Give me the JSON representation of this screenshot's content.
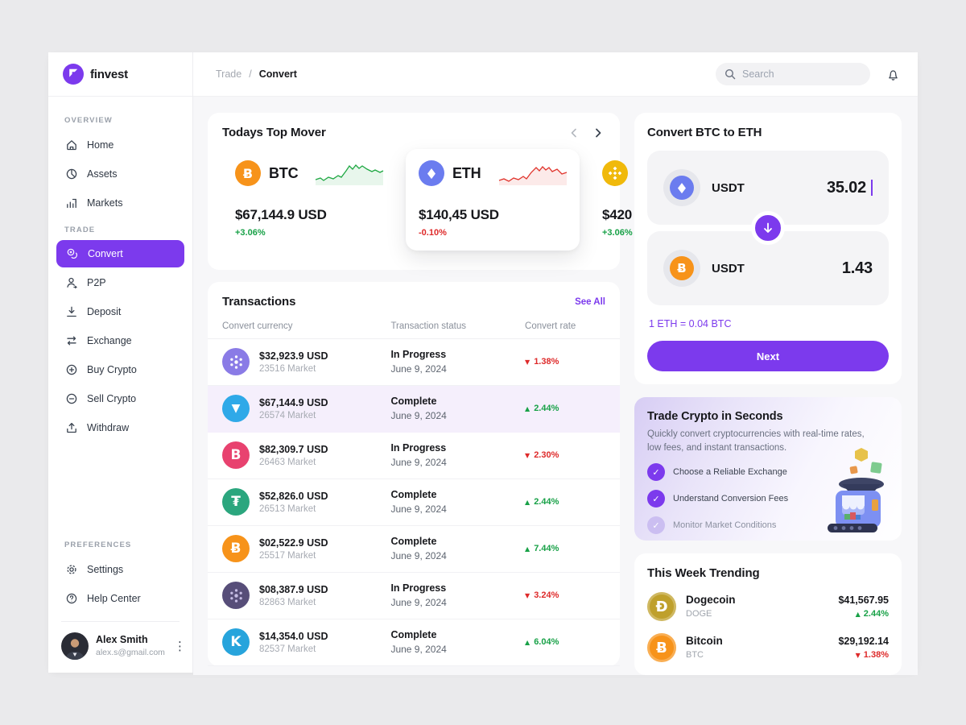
{
  "colors": {
    "accent": "#7c3aed",
    "green": "#18a147",
    "red": "#de2a2a"
  },
  "app": {
    "brand": "finvest"
  },
  "header": {
    "breadcrumb": [
      "Trade",
      "Convert"
    ],
    "search_placeholder": "Search"
  },
  "sidebar": {
    "sections": [
      {
        "label": "OVERVIEW",
        "items": [
          {
            "label": "Home",
            "icon": "home-icon"
          },
          {
            "label": "Assets",
            "icon": "assets-icon"
          },
          {
            "label": "Markets",
            "icon": "markets-icon"
          }
        ]
      },
      {
        "label": "TRADE",
        "items": [
          {
            "label": "Convert",
            "icon": "convert-icon",
            "active": true
          },
          {
            "label": "P2P",
            "icon": "p2p-icon"
          },
          {
            "label": "Deposit",
            "icon": "deposit-icon"
          },
          {
            "label": "Exchange",
            "icon": "exchange-icon"
          },
          {
            "label": "Buy Crypto",
            "icon": "buy-icon"
          },
          {
            "label": "Sell Crypto",
            "icon": "sell-icon"
          },
          {
            "label": "Withdraw",
            "icon": "withdraw-icon"
          }
        ]
      },
      {
        "label": "PREFERENCES",
        "items": [
          {
            "label": "Settings",
            "icon": "settings-icon"
          },
          {
            "label": "Help Center",
            "icon": "help-icon"
          }
        ]
      }
    ],
    "profile": {
      "name": "Alex Smith",
      "email": "alex.s@gmail.com"
    }
  },
  "top_mover": {
    "title": "Todays Top Mover",
    "cards": [
      {
        "symbol": "BTC",
        "price": "$67,144.9 USD",
        "change": "+3.06%",
        "direction": "up",
        "icon": {
          "kind": "text",
          "glyph": "Ƀ",
          "bg": "#f7931a"
        },
        "spark": "green",
        "elevated": false
      },
      {
        "symbol": "ETH",
        "price": "$140,45 USD",
        "change": "-0.10%",
        "direction": "down",
        "icon": {
          "kind": "eth",
          "bg": "#6b7cef"
        },
        "spark": "red",
        "elevated": true
      },
      {
        "symbol": "",
        "price": "$420",
        "change": "+3.06%",
        "direction": "up",
        "icon": {
          "kind": "cube",
          "bg": "#f0b90b"
        },
        "spark": "green",
        "elevated": false
      }
    ]
  },
  "transactions": {
    "title": "Transactions",
    "see_all": "See All",
    "columns": [
      "Convert currency",
      "Transaction status",
      "Convert rate"
    ],
    "rows": [
      {
        "value": "$32,923.9 USD",
        "market": "23516 Market",
        "status": "In Progress",
        "date": "June 9, 2024",
        "rate": "1.38%",
        "direction": "down",
        "icon": {
          "kind": "dots",
          "bg": "#8a7be6",
          "dot": "#ffffff"
        },
        "highlight": false
      },
      {
        "value": "$67,144.9 USD",
        "market": "26574 Market",
        "status": "Complete",
        "date": "June 9, 2024",
        "rate": "2.44%",
        "direction": "up",
        "icon": {
          "kind": "triangle",
          "bg": "#2fa9e8"
        },
        "highlight": true
      },
      {
        "value": "$82,309.7 USD",
        "market": "26463 Market",
        "status": "In Progress",
        "date": "June 9, 2024",
        "rate": "2.30%",
        "direction": "down",
        "icon": {
          "kind": "text",
          "glyph": "B",
          "bg": "#e8426f"
        },
        "highlight": false
      },
      {
        "value": "$52,826.0 USD",
        "market": "26513 Market",
        "status": "Complete",
        "date": "June 9, 2024",
        "rate": "2.44%",
        "direction": "up",
        "icon": {
          "kind": "text",
          "glyph": "₮",
          "bg": "#2ba67e"
        },
        "highlight": false
      },
      {
        "value": "$02,522.9 USD",
        "market": "25517 Market",
        "status": "Complete",
        "date": "June 9, 2024",
        "rate": "7.44%",
        "direction": "up",
        "icon": {
          "kind": "text",
          "glyph": "Ƀ",
          "bg": "#f7931a"
        },
        "highlight": false
      },
      {
        "value": "$08,387.9 USD",
        "market": "82863 Market",
        "status": "In Progress",
        "date": "June 9, 2024",
        "rate": "3.24%",
        "direction": "down",
        "icon": {
          "kind": "dots",
          "bg": "#574e79",
          "dot": "#c6bde4"
        },
        "highlight": false
      },
      {
        "value": "$14,354.0 USD",
        "market": "82537 Market",
        "status": "Complete",
        "date": "June 9, 2024",
        "rate": "6.04%",
        "direction": "up",
        "icon": {
          "kind": "text",
          "glyph": "K",
          "bg": "#27a4dc"
        },
        "highlight": false
      }
    ]
  },
  "convert_panel": {
    "title": "Convert BTC to ETH",
    "from": {
      "label": "USDT",
      "value": "35.02",
      "icon": {
        "kind": "eth",
        "bg": "#6b7cef"
      }
    },
    "to": {
      "label": "USDT",
      "value": "1.43",
      "icon": {
        "kind": "text",
        "glyph": "Ƀ",
        "bg": "#f7931a"
      }
    },
    "rate_line": "1 ETH = 0.04 BTC",
    "next_label": "Next"
  },
  "trade_promo": {
    "title": "Trade Crypto in Seconds",
    "description": "Quickly convert cryptocurrencies with real-time rates, low fees, and instant transactions.",
    "checklist": [
      {
        "label": "Choose a Reliable Exchange",
        "dim": false
      },
      {
        "label": "Understand Conversion Fees",
        "dim": false
      },
      {
        "label": "Monitor Market Conditions",
        "dim": true
      }
    ]
  },
  "trending": {
    "title": "This Week Trending",
    "rows": [
      {
        "name": "Dogecoin",
        "ticker": "DOGE",
        "price": "$41,567.95",
        "change": "2.44%",
        "direction": "up",
        "icon": {
          "kind": "text",
          "glyph": "Ð",
          "bg": "#bfa02c"
        }
      },
      {
        "name": "Bitcoin",
        "ticker": "BTC",
        "price": "$29,192.14",
        "change": "1.38%",
        "direction": "down",
        "icon": {
          "kind": "text",
          "glyph": "Ƀ",
          "bg": "#f7931a"
        }
      }
    ]
  }
}
